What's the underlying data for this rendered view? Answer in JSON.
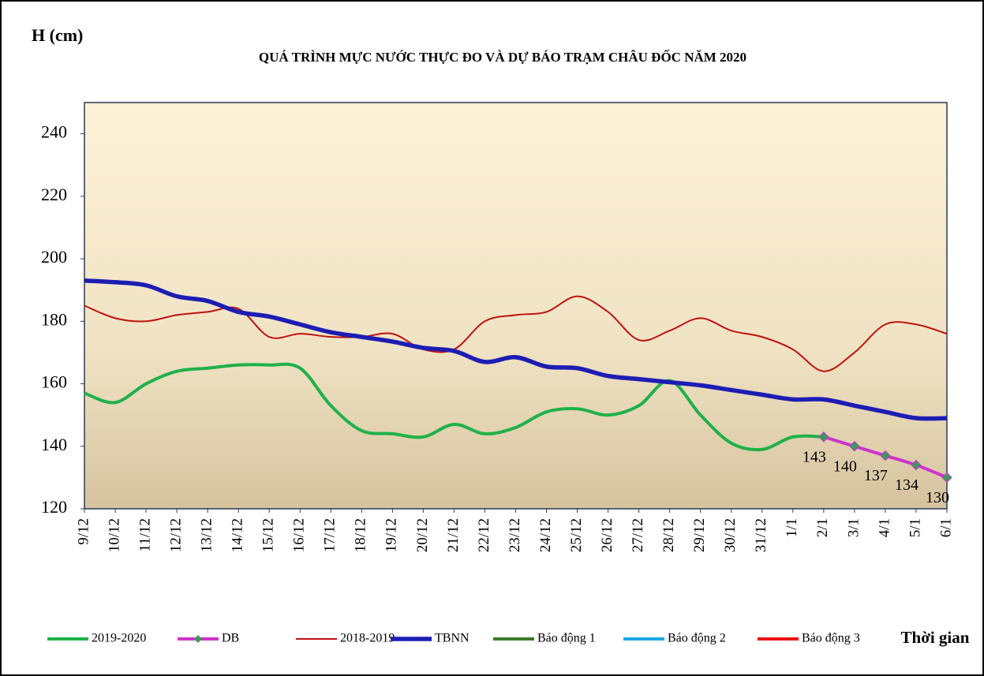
{
  "chart_data": {
    "type": "line",
    "title": "QUÁ TRÌNH MỰC NƯỚC THỰC ĐO VÀ DỰ BÁO TRẠM CHÂU ĐỐC NĂM  2020",
    "y_label": "H (cm)",
    "x_label": "Thời gian",
    "categories": [
      "9/12",
      "10/12",
      "11/12",
      "12/12",
      "13/12",
      "14/12",
      "15/12",
      "16/12",
      "17/12",
      "18/12",
      "19/12",
      "20/12",
      "21/12",
      "22/12",
      "23/12",
      "24/12",
      "25/12",
      "26/12",
      "27/12",
      "28/12",
      "29/12",
      "30/12",
      "31/12",
      "1/1",
      "2/1",
      "3/1",
      "4/1",
      "5/1",
      "6/1"
    ],
    "series": [
      {
        "name": "2019-2020",
        "color": "#1fb14a",
        "values": [
          157,
          154,
          160,
          164,
          165,
          166,
          166,
          165,
          153,
          145,
          144,
          143,
          147,
          144,
          146,
          151,
          152,
          150,
          153,
          161,
          150,
          141,
          139,
          143,
          143,
          null,
          null,
          null,
          null
        ]
      },
      {
        "name": "DB",
        "color": "#cc33cc",
        "marker": "diamond",
        "marker_color": "#3a9a5a",
        "data_labels": true,
        "values": [
          null,
          null,
          null,
          null,
          null,
          null,
          null,
          null,
          null,
          null,
          null,
          null,
          null,
          null,
          null,
          null,
          null,
          null,
          null,
          null,
          null,
          null,
          null,
          null,
          143,
          140,
          137,
          134,
          130
        ]
      },
      {
        "name": "2018-2019",
        "color": "#c0110f",
        "values": [
          185,
          181,
          180,
          182,
          183,
          184,
          175,
          176,
          175,
          175,
          176,
          171,
          171,
          180,
          182,
          183,
          188,
          183,
          174,
          177,
          181,
          177,
          175,
          171,
          164,
          170,
          179,
          179,
          176
        ]
      },
      {
        "name": "TBNN",
        "color": "#1d1db4",
        "values": [
          193,
          192.5,
          191.5,
          188,
          186.5,
          183,
          181.5,
          179,
          176.5,
          175,
          173.5,
          171.5,
          170.5,
          167,
          168.5,
          165.5,
          165,
          162.5,
          161.5,
          160.5,
          159.5,
          158,
          156.5,
          155,
          155,
          153,
          151,
          149,
          149
        ]
      },
      {
        "name": "Báo động 1",
        "color": "#3d7a2a"
      },
      {
        "name": "Báo động 2",
        "color": "#1aa8e8"
      },
      {
        "name": "Báo động 3",
        "color": "#ee1111"
      }
    ],
    "ylim": [
      120,
      250
    ],
    "yticks": [
      120,
      140,
      160,
      180,
      200,
      220,
      240
    ],
    "grid": false,
    "legend": "bottom"
  }
}
